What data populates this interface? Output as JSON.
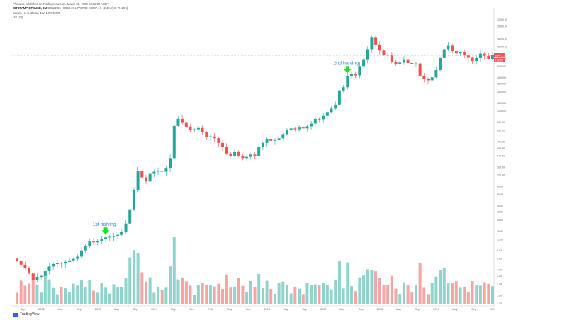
{
  "header": {
    "publisher_line": "Ffraudes published on TradingView.com, March 05, 2020 23:02:00 ACDT",
    "symbol_line": "BITSTAMP:BTCUSD, 3M  ",
    "ohlc_line": "O8622.96 H8920.06 L7707.00 C8847.17 −2.4% (Vol 78.29K)",
    "chart_title": "Bitcoin / U.S. Dollar, 1W, BITSTAMP",
    "volume_label": "Vol (20)"
  },
  "annotations": [
    {
      "text": "1st halving",
      "x_index": 22
    },
    {
      "text": "2nd halving",
      "x_index": 82
    }
  ],
  "colors": {
    "up": "#26a69a",
    "down": "#ef5350",
    "vol_up": "#8fd3cc",
    "vol_down": "#f4a6a4",
    "arrow": "#22dd22",
    "annotation_text": "#2a8cd6",
    "price_line": "#999999",
    "last_price_bg": "#ef5350",
    "last_price_text": "#ffffff"
  },
  "icons": {
    "logo": "tradingview-logo-icon",
    "halving_marker": "arrow-down-icon"
  },
  "branding": {
    "logo_text": "TradingView"
  },
  "chart_data": {
    "type": "candlestick",
    "scale": "log",
    "y_axis_ticks": [
      "32000.00",
      "25000.00",
      "16000.00",
      "12000.00",
      "8000.00",
      "6000.00",
      "4000.00",
      "3200.00",
      "2400.00",
      "1600.00",
      "1200.00",
      "800.00",
      "600.00",
      "400.00",
      "320.00",
      "240.00",
      "160.00",
      "120.00",
      "80.00",
      "60.00",
      "40.00",
      "32.00",
      "24.00",
      "16.00",
      "12.00",
      "8.00",
      "6.00",
      "4.00",
      "3.20",
      "2.40",
      "1.60",
      "1.20"
    ],
    "x_axis_ticks": [
      "Sep",
      "2012",
      "May",
      "Sep",
      "2013",
      "May",
      "Sep",
      "2014",
      "May",
      "Sep",
      "2015",
      "May",
      "Sep",
      "2016",
      "May",
      "Sep",
      "2017",
      "May",
      "Sep",
      "2018",
      "May",
      "Sep",
      "2019",
      "May",
      "Sep",
      "2020"
    ],
    "last_price": "8847.17",
    "last_price_2": "192:29",
    "closes": [
      5.5,
      4.8,
      4.3,
      3.5,
      2.8,
      3.1,
      3.2,
      3.8,
      4.5,
      4.9,
      5.1,
      5.0,
      5.3,
      5.6,
      5.9,
      6.4,
      8.0,
      9.5,
      11.0,
      10.7,
      11.3,
      12.1,
      12.8,
      13.0,
      13.4,
      14.0,
      15.5,
      21,
      35,
      70,
      140,
      110,
      95,
      125,
      135,
      140,
      135,
      155,
      220,
      700,
      900,
      780,
      680,
      600,
      620,
      650,
      560,
      470,
      480,
      450,
      380,
      330,
      260,
      240,
      280,
      240,
      220,
      230,
      250,
      240,
      330,
      380,
      430,
      410,
      420,
      450,
      520,
      600,
      640,
      620,
      660,
      640,
      690,
      760,
      900,
      890,
      1000,
      1150,
      1300,
      1500,
      2500,
      2800,
      4200,
      4500,
      4300,
      6000,
      7500,
      11000,
      17000,
      13000,
      10500,
      9000,
      8800,
      7000,
      6500,
      6800,
      7500,
      6700,
      6400,
      6600,
      4200,
      3800,
      3600,
      4000,
      5200,
      8000,
      11000,
      12500,
      10300,
      9500,
      9800,
      8800,
      8100,
      7200,
      8000,
      9400,
      8700,
      7800,
      8847
    ]
  }
}
